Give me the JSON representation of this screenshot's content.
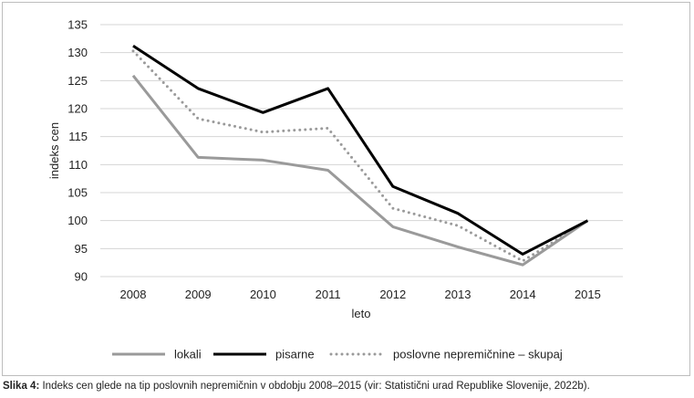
{
  "caption": {
    "label": "Slika 4:",
    "text": " Indeks cen glede na tip poslovnih nepremičnin v obdobju 2008–2015 (vir: Statistični urad Republike Slovenije, 2022b)."
  },
  "chart_data": {
    "type": "line",
    "title": "",
    "xlabel": "leto",
    "ylabel": "indeks cen",
    "categories": [
      "2008",
      "2009",
      "2010",
      "2011",
      "2012",
      "2013",
      "2014",
      "2015"
    ],
    "ylim": [
      90,
      135
    ],
    "yticks": [
      "90",
      "95",
      "100",
      "105",
      "110",
      "115",
      "120",
      "125",
      "130",
      "135"
    ],
    "grid": true,
    "legend_position": "bottom",
    "series": [
      {
        "name": "lokali",
        "color": "#9a9a9a",
        "style": "solid",
        "values": [
          125.9,
          111.3,
          110.8,
          109.0,
          98.9,
          95.3,
          92.1,
          100.0
        ]
      },
      {
        "name": "pisarne",
        "color": "#000000",
        "style": "solid",
        "values": [
          131.2,
          123.6,
          119.3,
          123.6,
          106.1,
          101.3,
          94.0,
          100.0
        ]
      },
      {
        "name": "poslovne nepremičnine – skupaj",
        "color": "#9a9a9a",
        "style": "dotted",
        "values": [
          130.3,
          118.2,
          115.8,
          116.5,
          102.2,
          99.1,
          92.8,
          100.0
        ]
      }
    ]
  }
}
